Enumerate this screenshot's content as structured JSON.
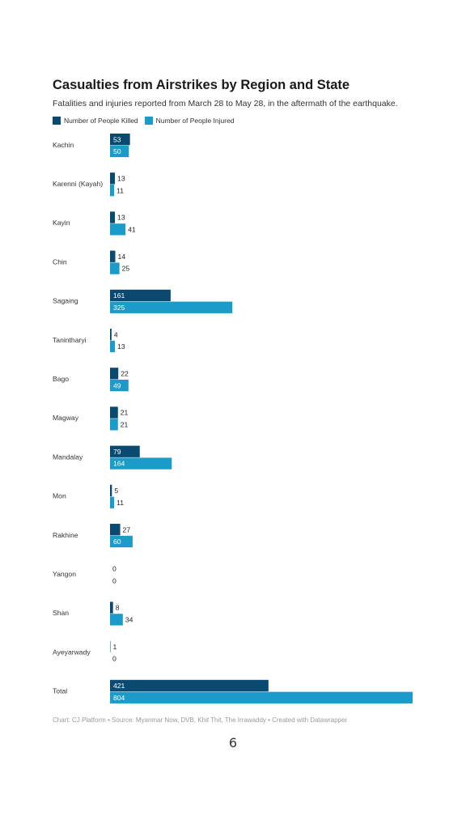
{
  "chart_data": {
    "type": "bar",
    "orientation": "horizontal",
    "title": "Casualties from Airstrikes by Region and State",
    "subtitle": "Fatalities and injuries reported from March 28 to May 28, in the aftermath of the earthquake.",
    "categories": [
      "Kachin",
      "Karenni (Kayah)",
      "Kayin",
      "Chin",
      "Sagaing",
      "Tanintharyi",
      "Bago",
      "Magway",
      "Mandalay",
      "Mon",
      "Rakhine",
      "Yangon",
      "Shan",
      "Ayeyarwady",
      "Total"
    ],
    "series": [
      {
        "name": "Number of People Killed",
        "color": "#0b4a70",
        "values": [
          53,
          13,
          13,
          14,
          161,
          4,
          22,
          21,
          79,
          5,
          27,
          0,
          8,
          1,
          421
        ]
      },
      {
        "name": "Number of People Injured",
        "color": "#1a9bc9",
        "values": [
          50,
          11,
          41,
          25,
          325,
          13,
          49,
          21,
          164,
          11,
          60,
          0,
          34,
          0,
          804
        ]
      }
    ],
    "xlim": [
      0,
      804
    ],
    "legend_position": "top-left",
    "grid": false
  },
  "footer": "Chart: CJ Platform  • Source: Myanmar Now, DVB, Khit Thit, The Irrawaddy  • Created with Datawrapper",
  "page_number": "6"
}
